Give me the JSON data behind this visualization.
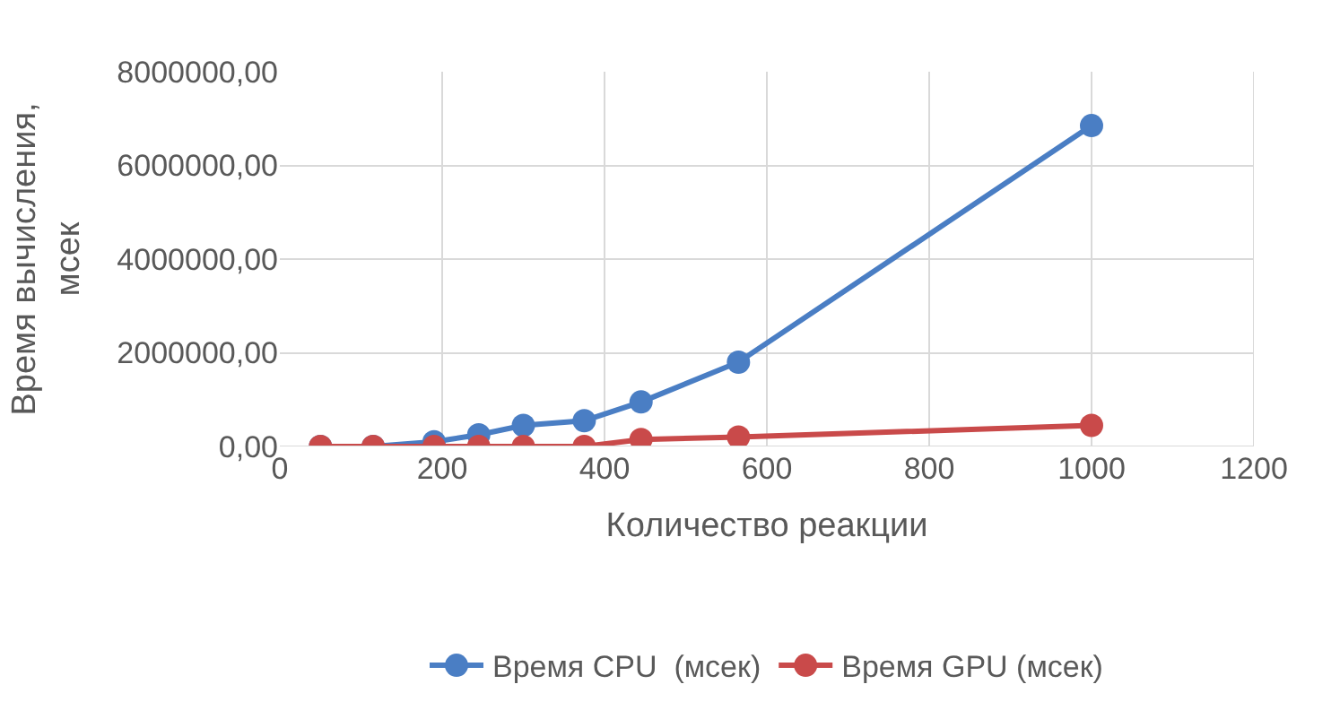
{
  "chart_data": {
    "type": "line",
    "xlabel": "Количество реакции",
    "ylabel": "Время вычисления, мсек",
    "x": [
      50,
      115,
      190,
      245,
      300,
      375,
      445,
      565,
      1000
    ],
    "series": [
      {
        "name": "Время CPU  (мсек)",
        "color": "#4a7ec4",
        "values": [
          0,
          0,
          100000,
          250000,
          450000,
          550000,
          950000,
          1800000,
          6850000
        ]
      },
      {
        "name": "Время GPU (мсек)",
        "color": "#c94a4a",
        "values": [
          0,
          0,
          0,
          0,
          0,
          0,
          150000,
          200000,
          450000
        ]
      }
    ],
    "xlim": [
      0,
      1200
    ],
    "xticks": [
      0,
      200,
      400,
      600,
      800,
      1000,
      1200
    ],
    "ylim": [
      0,
      8000000
    ],
    "yticks": [
      {
        "value": 0,
        "label": "0,00"
      },
      {
        "value": 2000000,
        "label": "2000000,00"
      },
      {
        "value": 4000000,
        "label": "4000000,00"
      },
      {
        "value": 6000000,
        "label": "6000000,00"
      },
      {
        "value": 8000000,
        "label": "8000000,00"
      }
    ],
    "grid": true,
    "legend": "bottom",
    "marker": "circle",
    "line_style": "solid"
  }
}
